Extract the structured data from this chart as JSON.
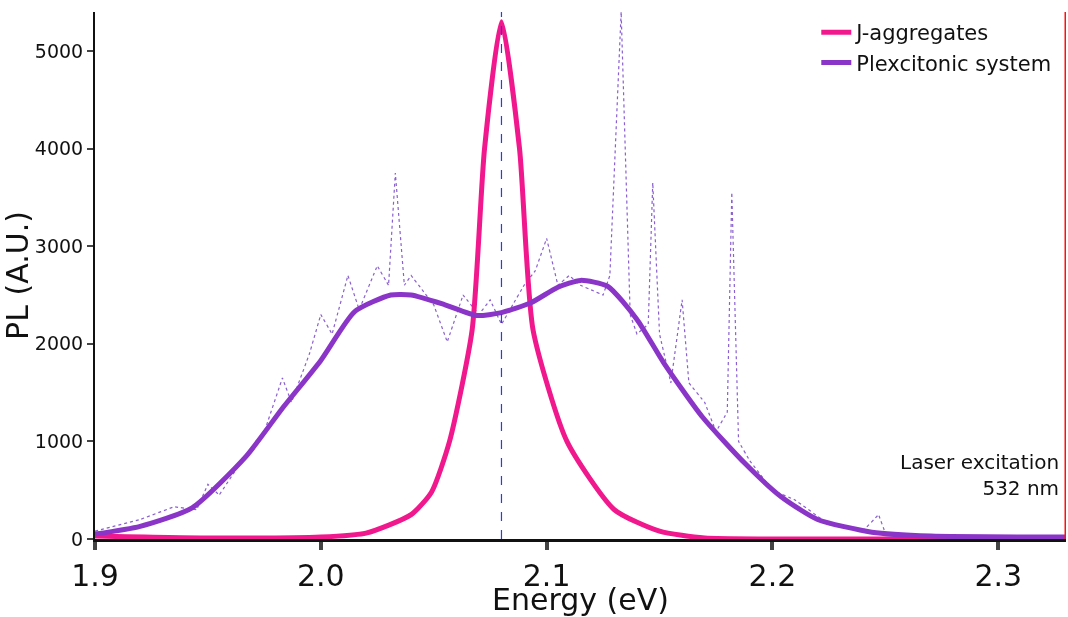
{
  "chart_data": {
    "type": "line",
    "xlabel": "Energy (eV)",
    "ylabel": "PL (A.U.)",
    "xlim": [
      1.9,
      2.33
    ],
    "xticks": [
      {
        "value": 1.9,
        "label": "1.9"
      },
      {
        "value": 2.0,
        "label": "2.0"
      },
      {
        "value": 2.1,
        "label": "2.1"
      },
      {
        "value": 2.2,
        "label": "2.2"
      },
      {
        "value": 2.3,
        "label": "2.3"
      }
    ],
    "ylim": [
      0,
      5400
    ],
    "yticks": [
      0,
      1000,
      2000,
      3000,
      4000,
      5000
    ],
    "legend": "top right",
    "marker": "none",
    "series": [
      {
        "line_style": "dotted",
        "color": "#8a5fd0",
        "x": [
          1.9,
          1.92,
          1.935,
          1.945,
          1.95,
          1.955,
          1.965,
          1.975,
          1.983,
          1.987,
          1.995,
          2.0,
          2.005,
          2.012,
          2.017,
          2.025,
          2.03,
          2.033,
          2.037,
          2.04,
          2.045,
          2.05,
          2.056,
          2.063,
          2.07,
          2.075,
          2.08,
          2.085,
          2.09,
          2.095,
          2.1,
          2.105,
          2.11,
          2.115,
          2.12,
          2.125,
          2.128,
          2.133,
          2.137,
          2.14,
          2.145,
          2.147,
          2.15,
          2.155,
          2.16,
          2.163,
          2.17,
          2.175,
          2.18,
          2.182,
          2.185,
          2.19,
          2.2,
          2.21,
          2.225,
          2.24,
          2.247,
          2.25,
          2.27,
          2.3,
          2.33
        ],
        "values": [
          80,
          200,
          330,
          300,
          560,
          450,
          800,
          1100,
          1650,
          1400,
          1900,
          2300,
          2100,
          2700,
          2350,
          2800,
          2600,
          3750,
          2600,
          2700,
          2550,
          2400,
          2020,
          2500,
          2300,
          2450,
          2200,
          2400,
          2600,
          2750,
          3080,
          2600,
          2700,
          2600,
          2550,
          2500,
          2700,
          5400,
          2300,
          2100,
          2200,
          3650,
          2100,
          1600,
          2450,
          1600,
          1400,
          1100,
          1300,
          3550,
          1000,
          800,
          500,
          400,
          150,
          80,
          250,
          60,
          30,
          20,
          20
        ]
      },
      {
        "name": "J-aggregates",
        "color": "#f0188c",
        "x": [
          1.9,
          1.95,
          2.0,
          2.02,
          2.04,
          2.049,
          2.057,
          2.067,
          2.0725,
          2.08,
          2.088,
          2.094,
          2.109,
          2.13,
          2.15,
          2.17,
          2.2,
          2.33
        ],
        "values": [
          30,
          10,
          20,
          60,
          250,
          480,
          1000,
          2140,
          4000,
          5300,
          4000,
          2140,
          1000,
          300,
          80,
          10,
          0,
          0
        ]
      },
      {
        "name": "Plexcitonic system",
        "color": "#8a35c8",
        "x": [
          1.9,
          1.92,
          1.943,
          1.967,
          1.983,
          2.0,
          2.015,
          2.031,
          2.04,
          2.055,
          2.069,
          2.08,
          2.093,
          2.105,
          2.115,
          2.127,
          2.14,
          2.152,
          2.169,
          2.188,
          2.204,
          2.22,
          2.244,
          2.27,
          2.33
        ],
        "values": [
          50,
          130,
          320,
          850,
          1340,
          1830,
          2330,
          2500,
          2500,
          2400,
          2290,
          2320,
          2420,
          2580,
          2650,
          2590,
          2250,
          1800,
          1250,
          770,
          430,
          200,
          70,
          30,
          20
        ]
      }
    ],
    "ref_lines": [
      {
        "axis": "x",
        "value": 2.08,
        "color": "#1f3cff",
        "line_style": "dashed"
      },
      {
        "axis": "x",
        "value": 2.33,
        "color": "#ff1010",
        "line_style": "solid"
      }
    ],
    "annotations": [
      "Laser excitation\n532 nm"
    ]
  }
}
